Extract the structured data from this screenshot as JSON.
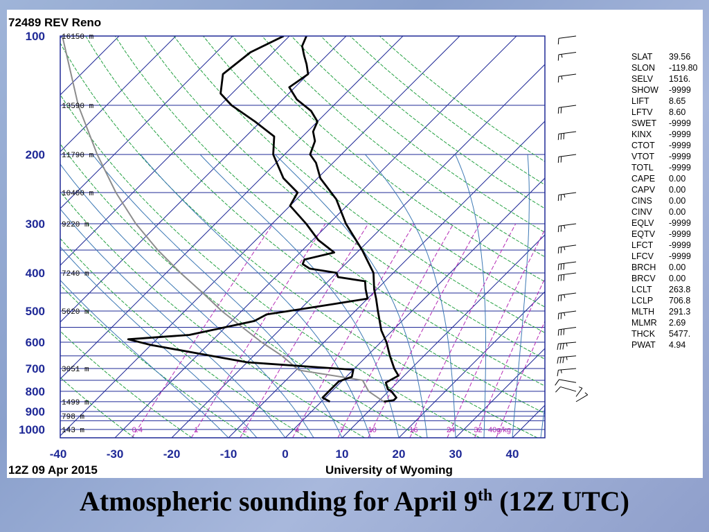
{
  "caption": {
    "main": "Atmospheric sounding for April 9",
    "sup": "th",
    "tail": " (12Z UTC)"
  },
  "colors": {
    "isobar": "#1e2896",
    "isotherm": "#1e2896",
    "dry_adiabat": "#22a040",
    "moist_adiabat": "#3c78b4",
    "mixing_ratio": "#b428b4",
    "parcel": "#8c8c8c",
    "profile": "#000000"
  },
  "chart_data": {
    "type": "skew-t",
    "title": "72489 REV Reno",
    "date_label": "12Z 09 Apr 2015",
    "source_label": "University of Wyoming",
    "pressure_ticks": [
      100,
      200,
      300,
      400,
      500,
      600,
      700,
      800,
      900,
      1000
    ],
    "isobars": [
      100,
      150,
      200,
      250,
      300,
      350,
      400,
      450,
      500,
      550,
      600,
      650,
      700,
      750,
      800,
      850,
      900,
      925,
      950,
      1000
    ],
    "temperature_ticks": [
      -40,
      -30,
      -20,
      -10,
      0,
      10,
      20,
      30,
      40
    ],
    "xlim": [
      -40,
      45
    ],
    "ylim": [
      1050,
      100
    ],
    "height_labels": [
      {
        "p": 100,
        "text": "16150 m"
      },
      {
        "p": 150,
        "text": "13590 m"
      },
      {
        "p": 200,
        "text": "11790 m"
      },
      {
        "p": 250,
        "text": "10400 m"
      },
      {
        "p": 300,
        "text": "9220 m"
      },
      {
        "p": 400,
        "text": "7240 m"
      },
      {
        "p": 500,
        "text": "5620 m"
      },
      {
        "p": 700,
        "text": "3051 m"
      },
      {
        "p": 850,
        "text": "1499 m"
      },
      {
        "p": 925,
        "text": "798 m"
      },
      {
        "p": 1000,
        "text": "143 m"
      }
    ],
    "mixing_ratio_labels": [
      "0.4",
      "1",
      "2",
      "4",
      "7",
      "10",
      "16",
      "24",
      "32",
      "40g/kg"
    ],
    "mixing_ratio_values": [
      0.4,
      1,
      2,
      4,
      7,
      10,
      16,
      24,
      32,
      40
    ],
    "temperature_profile": [
      {
        "p": 850,
        "t": 11.0
      },
      {
        "p": 843,
        "t": 12.5
      },
      {
        "p": 830,
        "t": 12.5
      },
      {
        "p": 800,
        "t": 10.5
      },
      {
        "p": 790,
        "t": 9.5
      },
      {
        "p": 760,
        "t": 8.0
      },
      {
        "p": 730,
        "t": 9.0
      },
      {
        "p": 715,
        "t": 8.0
      },
      {
        "p": 700,
        "t": 7.0
      },
      {
        "p": 650,
        "t": 4.0
      },
      {
        "p": 600,
        "t": 1.0
      },
      {
        "p": 560,
        "t": -2.0
      },
      {
        "p": 500,
        "t": -6.0
      },
      {
        "p": 465,
        "t": -8.5
      },
      {
        "p": 440,
        "t": -10.5
      },
      {
        "p": 400,
        "t": -13.5
      },
      {
        "p": 350,
        "t": -19.5
      },
      {
        "p": 300,
        "t": -27.0
      },
      {
        "p": 260,
        "t": -33.0
      },
      {
        "p": 230,
        "t": -39.5
      },
      {
        "p": 210,
        "t": -43.0
      },
      {
        "p": 200,
        "t": -45.5
      },
      {
        "p": 185,
        "t": -47.0
      },
      {
        "p": 175,
        "t": -49.0
      },
      {
        "p": 165,
        "t": -50.0
      },
      {
        "p": 155,
        "t": -53.0
      },
      {
        "p": 145,
        "t": -57.5
      },
      {
        "p": 135,
        "t": -61.0
      },
      {
        "p": 125,
        "t": -60.0
      },
      {
        "p": 118,
        "t": -62.0
      },
      {
        "p": 112,
        "t": -64.0
      },
      {
        "p": 106,
        "t": -66.0
      },
      {
        "p": 100,
        "t": -67.0
      }
    ],
    "dewpoint_profile": [
      {
        "p": 850,
        "t": 1.5
      },
      {
        "p": 830,
        "t": -0.5
      },
      {
        "p": 790,
        "t": -0.5
      },
      {
        "p": 755,
        "t": -0.5
      },
      {
        "p": 735,
        "t": 1.0
      },
      {
        "p": 705,
        "t": 0.0
      },
      {
        "p": 690,
        "t": -10.0
      },
      {
        "p": 675,
        "t": -20.0
      },
      {
        "p": 610,
        "t": -40.0
      },
      {
        "p": 590,
        "t": -45.0
      },
      {
        "p": 575,
        "t": -35.0
      },
      {
        "p": 530,
        "t": -26.0
      },
      {
        "p": 510,
        "t": -25.0
      },
      {
        "p": 495,
        "t": -20.0
      },
      {
        "p": 480,
        "t": -15.0
      },
      {
        "p": 465,
        "t": -10.0
      },
      {
        "p": 440,
        "t": -12.0
      },
      {
        "p": 420,
        "t": -13.5
      },
      {
        "p": 410,
        "t": -19.0
      },
      {
        "p": 400,
        "t": -20.0
      },
      {
        "p": 390,
        "t": -25.5
      },
      {
        "p": 380,
        "t": -27.5
      },
      {
        "p": 370,
        "t": -28.0
      },
      {
        "p": 355,
        "t": -24.0
      },
      {
        "p": 330,
        "t": -29.0
      },
      {
        "p": 300,
        "t": -34.0
      },
      {
        "p": 270,
        "t": -40.0
      },
      {
        "p": 250,
        "t": -41.0
      },
      {
        "p": 230,
        "t": -46.0
      },
      {
        "p": 200,
        "t": -52.0
      },
      {
        "p": 180,
        "t": -55.0
      },
      {
        "p": 165,
        "t": -61.0
      },
      {
        "p": 150,
        "t": -68.0
      },
      {
        "p": 140,
        "t": -72.0
      },
      {
        "p": 125,
        "t": -75.0
      },
      {
        "p": 110,
        "t": -74.0
      },
      {
        "p": 100,
        "t": -71.0
      }
    ],
    "parcel_profile": [
      {
        "p": 850,
        "t": 11.0
      },
      {
        "p": 800,
        "t": 6.5
      },
      {
        "p": 750,
        "t": 3.5
      },
      {
        "p": 706.8,
        "t": -9.5
      },
      {
        "p": 650,
        "t": -15.0
      },
      {
        "p": 600,
        "t": -21.0
      },
      {
        "p": 550,
        "t": -27.0
      },
      {
        "p": 500,
        "t": -33.5
      },
      {
        "p": 450,
        "t": -40.0
      },
      {
        "p": 400,
        "t": -47.5
      },
      {
        "p": 350,
        "t": -55.5
      },
      {
        "p": 300,
        "t": -64.0
      },
      {
        "p": 250,
        "t": -73.0
      },
      {
        "p": 200,
        "t": -83.0
      },
      {
        "p": 150,
        "t": -95.0
      },
      {
        "p": 100,
        "t": -110.0
      }
    ],
    "wind_barbs": [
      {
        "p": 850,
        "dir": 40,
        "spd": 5
      },
      {
        "p": 825,
        "dir": 20,
        "spd": 5
      },
      {
        "p": 800,
        "dir": 300,
        "spd": 10
      },
      {
        "p": 760,
        "dir": 290,
        "spd": 10
      },
      {
        "p": 700,
        "dir": 260,
        "spd": 15
      },
      {
        "p": 650,
        "dir": 260,
        "spd": 35
      },
      {
        "p": 600,
        "dir": 260,
        "spd": 35
      },
      {
        "p": 550,
        "dir": 255,
        "spd": 30
      },
      {
        "p": 500,
        "dir": 255,
        "spd": 25
      },
      {
        "p": 450,
        "dir": 255,
        "spd": 25
      },
      {
        "p": 400,
        "dir": 255,
        "spd": 30
      },
      {
        "p": 375,
        "dir": 255,
        "spd": 30
      },
      {
        "p": 340,
        "dir": 255,
        "spd": 25
      },
      {
        "p": 300,
        "dir": 255,
        "spd": 25
      },
      {
        "p": 250,
        "dir": 255,
        "spd": 25
      },
      {
        "p": 200,
        "dir": 255,
        "spd": 20
      },
      {
        "p": 175,
        "dir": 255,
        "spd": 30
      },
      {
        "p": 150,
        "dir": 255,
        "spd": 20
      },
      {
        "p": 125,
        "dir": 255,
        "spd": 15
      },
      {
        "p": 110,
        "dir": 255,
        "spd": 15
      },
      {
        "p": 100,
        "dir": 255,
        "spd": 10
      }
    ],
    "indices": [
      {
        "key": "SLAT",
        "value": "39.56"
      },
      {
        "key": "SLON",
        "value": "-119.80"
      },
      {
        "key": "SELV",
        "value": "1516."
      },
      {
        "key": "SHOW",
        "value": "-9999"
      },
      {
        "key": "LIFT",
        "value": "8.65"
      },
      {
        "key": "LFTV",
        "value": "8.60"
      },
      {
        "key": "SWET",
        "value": "-9999"
      },
      {
        "key": "KINX",
        "value": "-9999"
      },
      {
        "key": "CTOT",
        "value": "-9999"
      },
      {
        "key": "VTOT",
        "value": "-9999"
      },
      {
        "key": "TOTL",
        "value": "-9999"
      },
      {
        "key": "CAPE",
        "value": "0.00"
      },
      {
        "key": "CAPV",
        "value": "0.00"
      },
      {
        "key": "CINS",
        "value": "0.00"
      },
      {
        "key": "CINV",
        "value": "0.00"
      },
      {
        "key": "EQLV",
        "value": "-9999"
      },
      {
        "key": "EQTV",
        "value": "-9999"
      },
      {
        "key": "LFCT",
        "value": "-9999"
      },
      {
        "key": "LFCV",
        "value": "-9999"
      },
      {
        "key": "BRCH",
        "value": "0.00"
      },
      {
        "key": "BRCV",
        "value": "0.00"
      },
      {
        "key": "LCLT",
        "value": "263.8"
      },
      {
        "key": "LCLP",
        "value": "706.8"
      },
      {
        "key": "MLTH",
        "value": "291.3"
      },
      {
        "key": "MLMR",
        "value": "2.69"
      },
      {
        "key": "THCK",
        "value": "5477."
      },
      {
        "key": "PWAT",
        "value": "4.94"
      }
    ]
  }
}
